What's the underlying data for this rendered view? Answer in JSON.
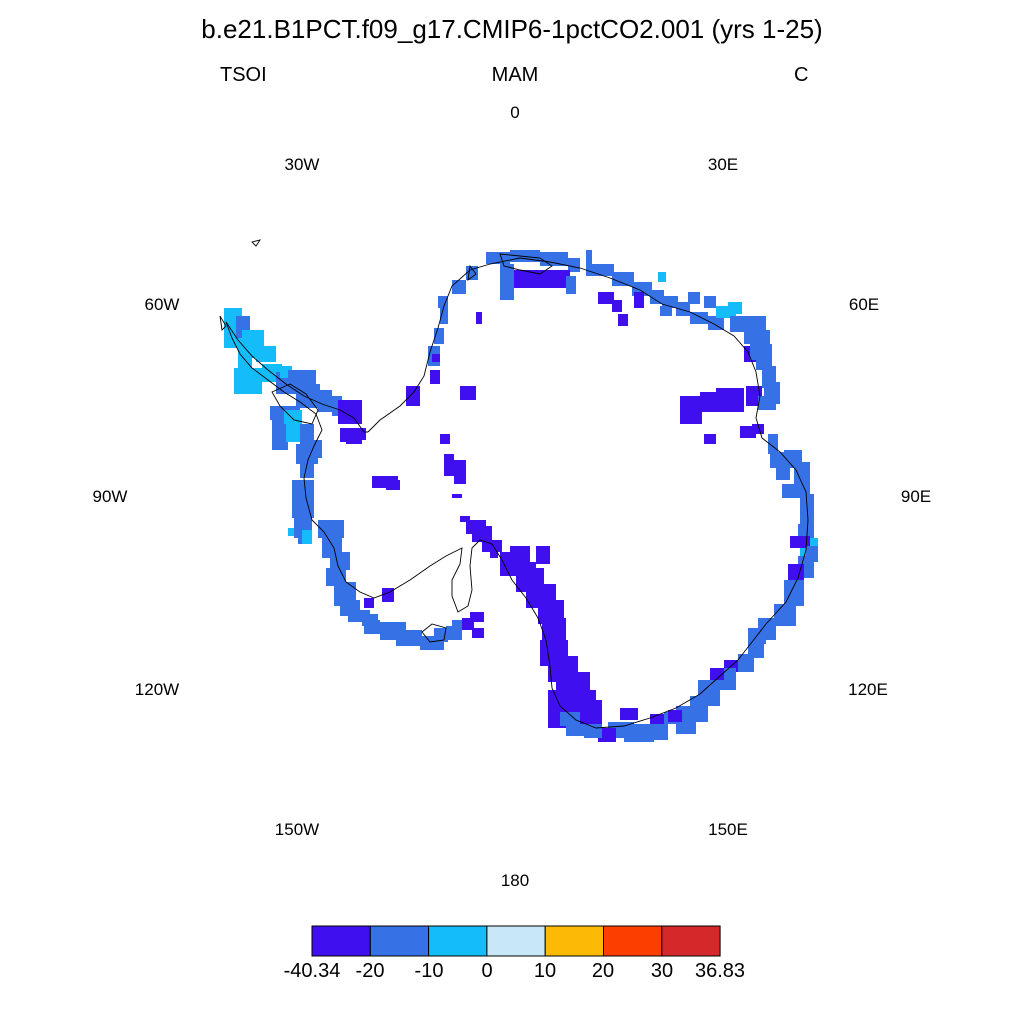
{
  "title": "b.e21.B1PCT.f09_g17.CMIP6-1pctCO2.001 (yrs 1-25)",
  "left_label": "TSOI",
  "center_label": "MAM",
  "right_label": "C",
  "lon_labels": [
    "0",
    "30E",
    "60E",
    "90E",
    "120E",
    "150E",
    "180",
    "150W",
    "120W",
    "90W",
    "60W",
    "30W"
  ],
  "colorbar": {
    "colors": [
      "#3f0ff0",
      "#3671e6",
      "#14bdf9",
      "#c8e7f7",
      "#fcba06",
      "#fc3e01",
      "#d5282a"
    ],
    "tick_labels": [
      "-40.34",
      "-20",
      "-10",
      "0",
      "10",
      "20",
      "30",
      "36.83"
    ]
  },
  "map_colors": {
    "deep_blue": "#3f0ff0",
    "mid_blue": "#3671e6",
    "light_blue": "#14bdf9",
    "coast": "#000000"
  }
}
